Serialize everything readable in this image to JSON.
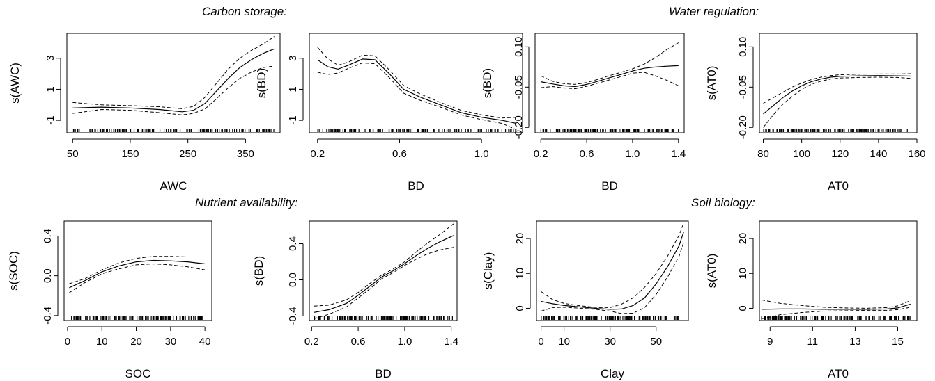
{
  "sections": [
    "Carbon storage:",
    "Water regulation:",
    "Nutrient availability:",
    "Soil biology:"
  ],
  "style": {
    "line_color": "#000000",
    "background": "#ffffff",
    "box_color": "#000000"
  },
  "chart_data": [
    {
      "type": "line",
      "xlabel": "AWC",
      "ylabel": "s(AWC)",
      "xlim": [
        40,
        410
      ],
      "ylim": [
        -1.8,
        4.6
      ],
      "xticks": [
        50,
        150,
        250,
        350
      ],
      "yticks": [
        -1,
        1,
        3
      ],
      "xtick_labels": [
        "50",
        "150",
        "250",
        "350"
      ],
      "ytick_labels": [
        "-1",
        "1",
        "3"
      ],
      "grid": false,
      "rug": true,
      "fit": [
        [
          50,
          -0.2
        ],
        [
          100,
          -0.15
        ],
        [
          150,
          -0.2
        ],
        [
          200,
          -0.3
        ],
        [
          240,
          -0.45
        ],
        [
          260,
          -0.35
        ],
        [
          280,
          0.1
        ],
        [
          300,
          0.9
        ],
        [
          320,
          1.7
        ],
        [
          340,
          2.4
        ],
        [
          360,
          2.9
        ],
        [
          380,
          3.3
        ],
        [
          400,
          3.6
        ]
      ],
      "upper": [
        [
          50,
          0.15
        ],
        [
          100,
          0.0
        ],
        [
          150,
          -0.05
        ],
        [
          200,
          -0.12
        ],
        [
          240,
          -0.25
        ],
        [
          260,
          -0.1
        ],
        [
          280,
          0.5
        ],
        [
          300,
          1.4
        ],
        [
          320,
          2.3
        ],
        [
          340,
          3.0
        ],
        [
          360,
          3.5
        ],
        [
          380,
          3.9
        ],
        [
          400,
          4.4
        ]
      ],
      "lower": [
        [
          50,
          -0.55
        ],
        [
          100,
          -0.3
        ],
        [
          150,
          -0.35
        ],
        [
          200,
          -0.5
        ],
        [
          240,
          -0.65
        ],
        [
          260,
          -0.55
        ],
        [
          280,
          -0.25
        ],
        [
          300,
          0.4
        ],
        [
          320,
          1.1
        ],
        [
          340,
          1.7
        ],
        [
          360,
          2.1
        ],
        [
          380,
          2.4
        ],
        [
          400,
          2.5
        ]
      ]
    },
    {
      "type": "line",
      "xlabel": "BD",
      "ylabel": "s(BD)",
      "xlim": [
        0.16,
        1.2
      ],
      "ylim": [
        -1.8,
        4.6
      ],
      "xticks": [
        0.2,
        0.6,
        1.0
      ],
      "yticks": [
        -1,
        1,
        3
      ],
      "xtick_labels": [
        "0.2",
        "0.6",
        "1.0"
      ],
      "ytick_labels": [
        "-1",
        "1",
        "3"
      ],
      "grid": false,
      "rug": true,
      "fit": [
        [
          0.2,
          2.9
        ],
        [
          0.25,
          2.45
        ],
        [
          0.3,
          2.3
        ],
        [
          0.35,
          2.55
        ],
        [
          0.42,
          2.95
        ],
        [
          0.48,
          2.9
        ],
        [
          0.55,
          2.0
        ],
        [
          0.62,
          1.0
        ],
        [
          0.7,
          0.5
        ],
        [
          0.8,
          0.0
        ],
        [
          0.9,
          -0.5
        ],
        [
          1.0,
          -0.8
        ],
        [
          1.1,
          -1.0
        ],
        [
          1.17,
          -1.2
        ]
      ],
      "upper": [
        [
          0.2,
          3.7
        ],
        [
          0.25,
          2.95
        ],
        [
          0.3,
          2.55
        ],
        [
          0.35,
          2.75
        ],
        [
          0.42,
          3.2
        ],
        [
          0.48,
          3.15
        ],
        [
          0.55,
          2.25
        ],
        [
          0.62,
          1.25
        ],
        [
          0.7,
          0.7
        ],
        [
          0.8,
          0.15
        ],
        [
          0.9,
          -0.35
        ],
        [
          1.0,
          -0.65
        ],
        [
          1.1,
          -0.85
        ],
        [
          1.17,
          -0.8
        ]
      ],
      "lower": [
        [
          0.2,
          2.1
        ],
        [
          0.25,
          1.95
        ],
        [
          0.3,
          2.05
        ],
        [
          0.35,
          2.35
        ],
        [
          0.42,
          2.7
        ],
        [
          0.48,
          2.65
        ],
        [
          0.55,
          1.75
        ],
        [
          0.62,
          0.75
        ],
        [
          0.7,
          0.3
        ],
        [
          0.8,
          -0.15
        ],
        [
          0.9,
          -0.65
        ],
        [
          1.0,
          -0.95
        ],
        [
          1.1,
          -1.2
        ],
        [
          1.17,
          -1.6
        ]
      ]
    },
    {
      "type": "line",
      "xlabel": "BD",
      "ylabel": "s(BD)",
      "xlim": [
        0.15,
        1.45
      ],
      "ylim": [
        -0.22,
        0.15
      ],
      "xticks": [
        0.2,
        0.6,
        1.0,
        1.4
      ],
      "yticks": [
        -0.2,
        -0.05,
        0.1
      ],
      "xtick_labels": [
        "0.2",
        "0.6",
        "1.0",
        "1.4"
      ],
      "ytick_labels": [
        "-0.20",
        "-0.05",
        "0.10"
      ],
      "grid": false,
      "rug": true,
      "fit": [
        [
          0.2,
          -0.03
        ],
        [
          0.3,
          -0.038
        ],
        [
          0.4,
          -0.045
        ],
        [
          0.5,
          -0.048
        ],
        [
          0.6,
          -0.04
        ],
        [
          0.7,
          -0.028
        ],
        [
          0.8,
          -0.015
        ],
        [
          0.9,
          -0.003
        ],
        [
          1.0,
          0.01
        ],
        [
          1.1,
          0.02
        ],
        [
          1.2,
          0.025
        ],
        [
          1.3,
          0.028
        ],
        [
          1.4,
          0.03
        ]
      ],
      "upper": [
        [
          0.2,
          -0.008
        ],
        [
          0.3,
          -0.028
        ],
        [
          0.4,
          -0.037
        ],
        [
          0.5,
          -0.04
        ],
        [
          0.6,
          -0.033
        ],
        [
          0.7,
          -0.021
        ],
        [
          0.8,
          -0.007
        ],
        [
          0.9,
          0.005
        ],
        [
          1.0,
          0.018
        ],
        [
          1.1,
          0.035
        ],
        [
          1.2,
          0.06
        ],
        [
          1.3,
          0.09
        ],
        [
          1.4,
          0.115
        ]
      ],
      "lower": [
        [
          0.2,
          -0.052
        ],
        [
          0.3,
          -0.048
        ],
        [
          0.4,
          -0.053
        ],
        [
          0.5,
          -0.056
        ],
        [
          0.6,
          -0.047
        ],
        [
          0.7,
          -0.035
        ],
        [
          0.8,
          -0.023
        ],
        [
          0.9,
          -0.011
        ],
        [
          1.0,
          0.002
        ],
        [
          1.1,
          0.005
        ],
        [
          1.2,
          -0.008
        ],
        [
          1.3,
          -0.025
        ],
        [
          1.4,
          -0.045
        ]
      ]
    },
    {
      "type": "line",
      "xlabel": "AT0",
      "ylabel": "s(AT0)",
      "xlim": [
        78,
        160
      ],
      "ylim": [
        -0.22,
        0.15
      ],
      "xticks": [
        80,
        100,
        120,
        140,
        160
      ],
      "yticks": [
        -0.2,
        -0.05,
        0.1
      ],
      "xtick_labels": [
        "80",
        "100",
        "120",
        "140",
        "160"
      ],
      "ytick_labels": [
        "-0.20",
        "-0.05",
        "0.10"
      ],
      "grid": false,
      "rug": true,
      "fit": [
        [
          80,
          -0.15
        ],
        [
          85,
          -0.12
        ],
        [
          90,
          -0.09
        ],
        [
          95,
          -0.065
        ],
        [
          100,
          -0.045
        ],
        [
          105,
          -0.03
        ],
        [
          110,
          -0.02
        ],
        [
          115,
          -0.013
        ],
        [
          120,
          -0.01
        ],
        [
          130,
          -0.008
        ],
        [
          140,
          -0.007
        ],
        [
          150,
          -0.008
        ],
        [
          157,
          -0.009
        ]
      ],
      "upper": [
        [
          80,
          -0.11
        ],
        [
          85,
          -0.09
        ],
        [
          90,
          -0.07
        ],
        [
          95,
          -0.05
        ],
        [
          100,
          -0.035
        ],
        [
          105,
          -0.022
        ],
        [
          110,
          -0.013
        ],
        [
          115,
          -0.007
        ],
        [
          120,
          -0.004
        ],
        [
          130,
          -0.002
        ],
        [
          140,
          -0.001
        ],
        [
          150,
          -0.001
        ],
        [
          157,
          0.0
        ]
      ],
      "lower": [
        [
          80,
          -0.2
        ],
        [
          85,
          -0.155
        ],
        [
          90,
          -0.115
        ],
        [
          95,
          -0.085
        ],
        [
          100,
          -0.058
        ],
        [
          105,
          -0.04
        ],
        [
          110,
          -0.028
        ],
        [
          115,
          -0.02
        ],
        [
          120,
          -0.016
        ],
        [
          130,
          -0.014
        ],
        [
          140,
          -0.013
        ],
        [
          150,
          -0.014
        ],
        [
          157,
          -0.018
        ]
      ]
    },
    {
      "type": "line",
      "xlabel": "SOC",
      "ylabel": "s(SOC)",
      "xlim": [
        -1,
        42
      ],
      "ylim": [
        -0.45,
        0.55
      ],
      "xticks": [
        0,
        10,
        20,
        30,
        40
      ],
      "yticks": [
        -0.4,
        0.0,
        0.4
      ],
      "xtick_labels": [
        "0",
        "10",
        "20",
        "30",
        "40"
      ],
      "ytick_labels": [
        "-0.4",
        "0.0",
        "0.4"
      ],
      "grid": false,
      "rug": true,
      "fit": [
        [
          0.5,
          -0.12
        ],
        [
          5,
          -0.05
        ],
        [
          10,
          0.04
        ],
        [
          15,
          0.1
        ],
        [
          20,
          0.14
        ],
        [
          25,
          0.155
        ],
        [
          30,
          0.15
        ],
        [
          35,
          0.14
        ],
        [
          40,
          0.12
        ]
      ],
      "upper": [
        [
          0.5,
          -0.08
        ],
        [
          5,
          -0.03
        ],
        [
          10,
          0.06
        ],
        [
          15,
          0.13
        ],
        [
          20,
          0.175
        ],
        [
          25,
          0.195
        ],
        [
          30,
          0.195
        ],
        [
          35,
          0.19
        ],
        [
          40,
          0.19
        ]
      ],
      "lower": [
        [
          0.5,
          -0.17
        ],
        [
          5,
          -0.07
        ],
        [
          10,
          0.02
        ],
        [
          15,
          0.07
        ],
        [
          20,
          0.11
        ],
        [
          25,
          0.12
        ],
        [
          30,
          0.11
        ],
        [
          35,
          0.09
        ],
        [
          40,
          0.06
        ]
      ]
    },
    {
      "type": "line",
      "xlabel": "BD",
      "ylabel": "s(BD)",
      "xlim": [
        0.18,
        1.45
      ],
      "ylim": [
        -0.45,
        0.65
      ],
      "xticks": [
        0.2,
        0.6,
        1.0,
        1.4
      ],
      "yticks": [
        -0.4,
        0.0,
        0.4
      ],
      "xtick_labels": [
        "0.2",
        "0.6",
        "1.0",
        "1.4"
      ],
      "ytick_labels": [
        "-0.4",
        "0.0",
        "0.4"
      ],
      "grid": false,
      "rug": true,
      "fit": [
        [
          0.22,
          -0.36
        ],
        [
          0.35,
          -0.33
        ],
        [
          0.5,
          -0.26
        ],
        [
          0.6,
          -0.17
        ],
        [
          0.7,
          -0.07
        ],
        [
          0.8,
          0.03
        ],
        [
          0.9,
          0.1
        ],
        [
          1.0,
          0.18
        ],
        [
          1.1,
          0.27
        ],
        [
          1.2,
          0.35
        ],
        [
          1.3,
          0.42
        ],
        [
          1.42,
          0.49
        ]
      ],
      "upper": [
        [
          0.22,
          -0.29
        ],
        [
          0.35,
          -0.28
        ],
        [
          0.5,
          -0.22
        ],
        [
          0.6,
          -0.14
        ],
        [
          0.7,
          -0.04
        ],
        [
          0.8,
          0.05
        ],
        [
          0.9,
          0.12
        ],
        [
          1.0,
          0.2
        ],
        [
          1.1,
          0.31
        ],
        [
          1.2,
          0.41
        ],
        [
          1.3,
          0.5
        ],
        [
          1.42,
          0.62
        ]
      ],
      "lower": [
        [
          0.22,
          -0.43
        ],
        [
          0.35,
          -0.38
        ],
        [
          0.5,
          -0.3
        ],
        [
          0.6,
          -0.2
        ],
        [
          0.7,
          -0.1
        ],
        [
          0.8,
          0.01
        ],
        [
          0.9,
          0.08
        ],
        [
          1.0,
          0.16
        ],
        [
          1.1,
          0.23
        ],
        [
          1.2,
          0.29
        ],
        [
          1.3,
          0.33
        ],
        [
          1.42,
          0.36
        ]
      ]
    },
    {
      "type": "line",
      "xlabel": "Clay",
      "ylabel": "s(Clay)",
      "xlim": [
        -2,
        64
      ],
      "ylim": [
        -3.5,
        25
      ],
      "xticks": [
        0,
        10,
        30,
        50
      ],
      "yticks": [
        0,
        10,
        20
      ],
      "xtick_labels": [
        "0",
        "10",
        "30",
        "50"
      ],
      "ytick_labels": [
        "0",
        "10",
        "20"
      ],
      "grid": false,
      "rug": true,
      "fit": [
        [
          0,
          2.0
        ],
        [
          5,
          1.3
        ],
        [
          10,
          0.8
        ],
        [
          15,
          0.5
        ],
        [
          20,
          0.2
        ],
        [
          25,
          -0.1
        ],
        [
          30,
          -0.3
        ],
        [
          35,
          -0.2
        ],
        [
          40,
          0.8
        ],
        [
          45,
          3.0
        ],
        [
          50,
          7.0
        ],
        [
          55,
          12.0
        ],
        [
          60,
          18.0
        ],
        [
          62,
          22.0
        ]
      ],
      "upper": [
        [
          0,
          4.8
        ],
        [
          5,
          2.5
        ],
        [
          10,
          1.4
        ],
        [
          15,
          0.9
        ],
        [
          20,
          0.5
        ],
        [
          25,
          0.2
        ],
        [
          30,
          0.2
        ],
        [
          35,
          1.2
        ],
        [
          40,
          3.0
        ],
        [
          45,
          6.0
        ],
        [
          50,
          10.0
        ],
        [
          55,
          15.0
        ],
        [
          60,
          21.0
        ],
        [
          62,
          24.5
        ]
      ],
      "lower": [
        [
          0,
          -0.8
        ],
        [
          5,
          0.2
        ],
        [
          10,
          0.3
        ],
        [
          15,
          0.1
        ],
        [
          20,
          -0.1
        ],
        [
          25,
          -0.4
        ],
        [
          30,
          -0.8
        ],
        [
          35,
          -1.5
        ],
        [
          40,
          -1.4
        ],
        [
          45,
          0.2
        ],
        [
          50,
          4.0
        ],
        [
          55,
          9.0
        ],
        [
          60,
          15.0
        ],
        [
          62,
          19.0
        ]
      ]
    },
    {
      "type": "line",
      "xlabel": "AT0",
      "ylabel": "s(AT0)",
      "xlim": [
        8.5,
        15.9
      ],
      "ylim": [
        -3.5,
        25
      ],
      "xticks": [
        9,
        11,
        13,
        15
      ],
      "yticks": [
        0,
        10,
        20
      ],
      "xtick_labels": [
        "9",
        "11",
        "13",
        "15"
      ],
      "ytick_labels": [
        "0",
        "10",
        "20"
      ],
      "grid": false,
      "rug": true,
      "fit": [
        [
          8.6,
          -0.3
        ],
        [
          9.5,
          -0.2
        ],
        [
          10.5,
          -0.2
        ],
        [
          11.5,
          -0.3
        ],
        [
          12.5,
          -0.3
        ],
        [
          13.5,
          -0.3
        ],
        [
          14.5,
          -0.2
        ],
        [
          15.0,
          0.1
        ],
        [
          15.6,
          1.2
        ]
      ],
      "upper": [
        [
          8.6,
          2.4
        ],
        [
          9.5,
          1.4
        ],
        [
          10.5,
          0.8
        ],
        [
          11.5,
          0.3
        ],
        [
          12.5,
          0.1
        ],
        [
          13.5,
          0.0
        ],
        [
          14.5,
          0.2
        ],
        [
          15.0,
          0.7
        ],
        [
          15.6,
          2.2
        ]
      ],
      "lower": [
        [
          8.6,
          -3.0
        ],
        [
          9.5,
          -1.8
        ],
        [
          10.5,
          -1.2
        ],
        [
          11.5,
          -0.8
        ],
        [
          12.5,
          -0.7
        ],
        [
          13.5,
          -0.6
        ],
        [
          14.5,
          -0.6
        ],
        [
          15.0,
          -0.4
        ],
        [
          15.6,
          0.3
        ]
      ]
    }
  ]
}
